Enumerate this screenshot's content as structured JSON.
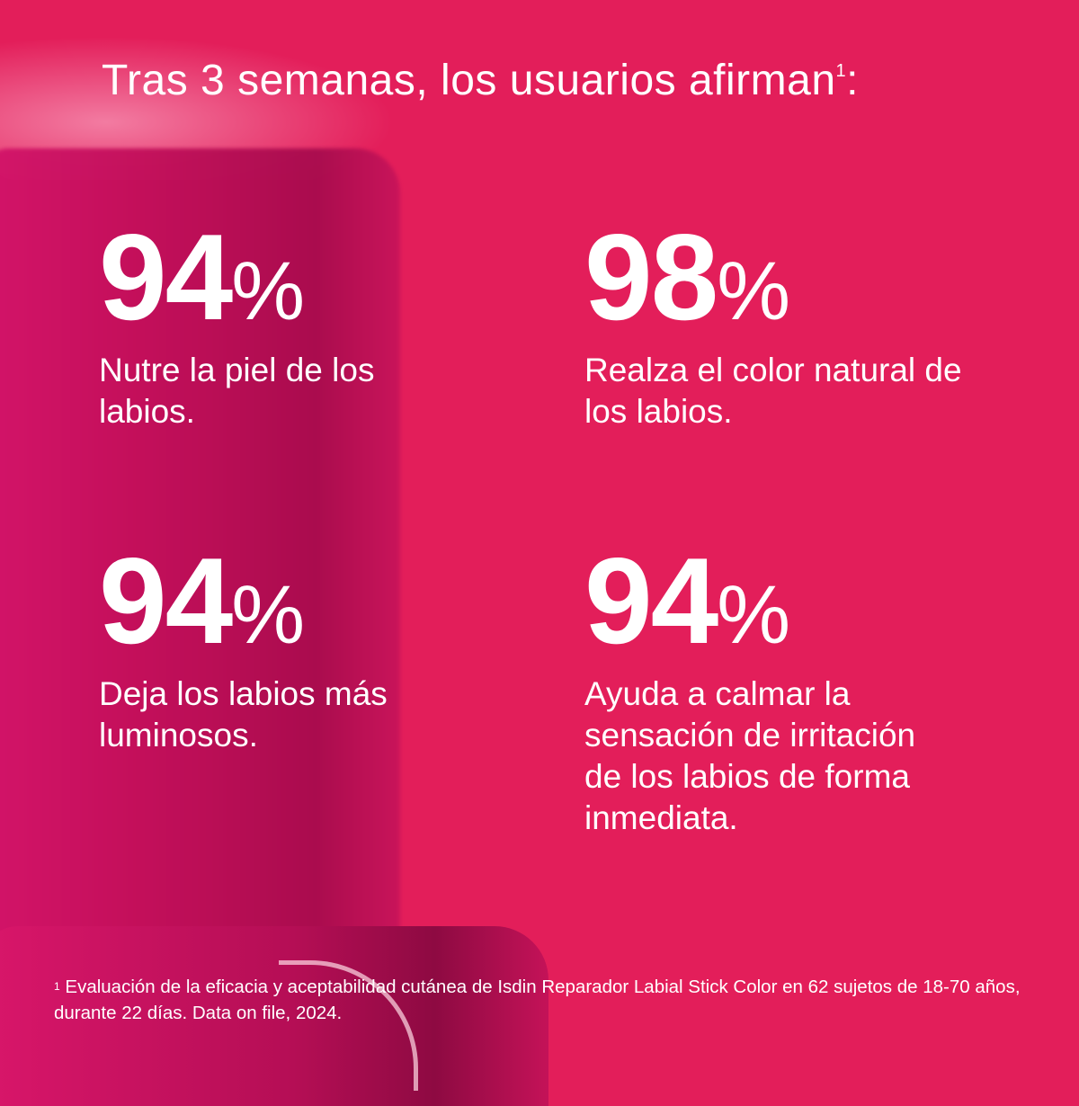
{
  "colors": {
    "background": "#e31e5a",
    "text": "#ffffff",
    "product": "#c10f5a"
  },
  "header": {
    "title": "Tras 3 semanas, los usuarios afirman",
    "footnote_marker": "1",
    "suffix": ":"
  },
  "stats": [
    {
      "value": "94",
      "unit": "%",
      "description": "Nutre la piel de los labios."
    },
    {
      "value": "98",
      "unit": "%",
      "description": "Realza el color natural de los labios."
    },
    {
      "value": "94",
      "unit": "%",
      "description": "Deja los labios más luminosos."
    },
    {
      "value": "94",
      "unit": "%",
      "description": "Ayuda a calmar la sensación de irritación de los labios de forma inmediata."
    }
  ],
  "footnote": {
    "marker": "1",
    "text": "Evaluación de la eficacia y aceptabilidad cutánea de Isdin Reparador Labial Stick Color en 62 sujetos de 18-70 años, durante 22 días. Data on file, 2024."
  }
}
